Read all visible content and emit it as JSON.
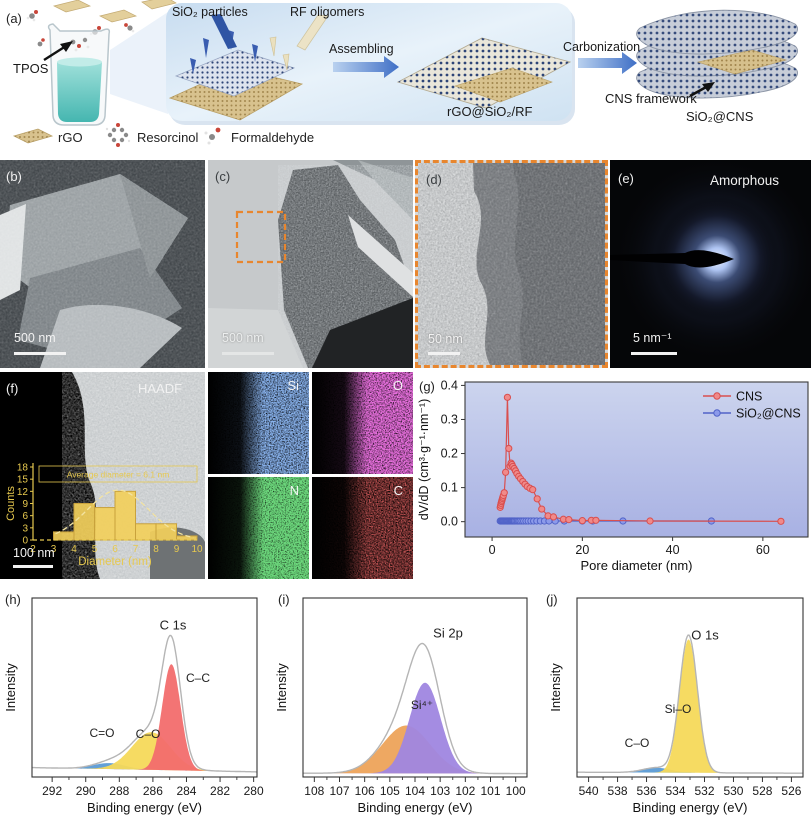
{
  "figure": {
    "panels": {
      "a": {
        "label": "(a)",
        "tpos": "TPOS",
        "sio2_particles": "SiO₂ particles",
        "rf_oligomers": "RF oligomers",
        "assembling": "Assembling",
        "intermediate": "rGO@SiO₂/RF",
        "carbonization": "Carbonization",
        "cns_framework": "CNS framework",
        "product": "SiO₂@CNS",
        "legend": [
          {
            "icon": "rgo-sheet-icon",
            "name": "rGO"
          },
          {
            "icon": "resorcinol-molecule-icon",
            "name": "Resorcinol"
          },
          {
            "icon": "formaldehyde-molecule-icon",
            "name": "Formaldehyde"
          }
        ]
      },
      "b": {
        "label": "(b)",
        "scale_bar": "500 nm"
      },
      "c": {
        "label": "(c)",
        "scale_bar": "500 nm"
      },
      "d": {
        "label": "(d)",
        "scale_bar": "50 nm"
      },
      "e": {
        "label": "(e)",
        "annotation": "Amorphous",
        "scale_bar": "5 nm⁻¹"
      },
      "f": {
        "label": "(f)",
        "technique": "HAADF",
        "scale_bar": "100 nm"
      },
      "eds": [
        {
          "element": "Si",
          "color": "#3d6fd0"
        },
        {
          "element": "O",
          "color": "#c428b2"
        },
        {
          "element": "N",
          "color": "#27a827"
        },
        {
          "element": "C",
          "color": "#9c1414"
        }
      ],
      "g": {
        "label": "(g)"
      },
      "h": {
        "label": "(h)"
      },
      "i": {
        "label": "(i)"
      },
      "j": {
        "label": "(j)"
      }
    }
  },
  "chart_data": [
    {
      "id": "pore-size-distribution",
      "type": "line",
      "panel": "g",
      "xlabel": "Pore diameter (nm)",
      "ylabel": "dV/dD (cm³·g⁻¹·nm⁻¹)",
      "xlim": [
        -6,
        70
      ],
      "ylim": [
        -0.045,
        0.41
      ],
      "xticks": [
        0,
        20,
        40,
        60
      ],
      "yticks": [
        0.0,
        0.1,
        0.2,
        0.3,
        0.4
      ],
      "grid": false,
      "legend_position": "top-right",
      "background": [
        "#ccd4ee",
        "#a8b1e3"
      ],
      "series": [
        {
          "name": "CNS",
          "color": "#d94f4f",
          "marker_fill": "#f08a8a",
          "x": [
            1.8,
            1.9,
            2.0,
            2.1,
            2.2,
            2.3,
            2.4,
            2.5,
            2.7,
            3.0,
            3.4,
            3.7,
            4.0,
            4.2,
            4.4,
            4.6,
            4.9,
            5.2,
            5.5,
            5.9,
            6.3,
            6.8,
            7.3,
            7.8,
            8.4,
            9.0,
            10.0,
            11.0,
            12.4,
            13.6,
            15.8,
            17.0,
            20.0,
            22.0,
            23.0,
            35.0,
            64.0
          ],
          "y": [
            0.042,
            0.048,
            0.054,
            0.059,
            0.063,
            0.068,
            0.072,
            0.077,
            0.085,
            0.145,
            0.365,
            0.215,
            0.163,
            0.172,
            0.168,
            0.162,
            0.156,
            0.149,
            0.141,
            0.133,
            0.126,
            0.118,
            0.11,
            0.103,
            0.098,
            0.094,
            0.067,
            0.037,
            0.017,
            0.014,
            0.007,
            0.006,
            0.003,
            0.004,
            0.004,
            0.002,
            0.001
          ]
        },
        {
          "name": "SiO₂@CNS",
          "color": "#5163c8",
          "marker_fill": "#8c9aea",
          "x": [
            1.8,
            2.0,
            2.2,
            2.4,
            2.6,
            2.8,
            3.0,
            3.2,
            3.4,
            3.6,
            3.8,
            4.0,
            4.2,
            4.4,
            4.6,
            4.8,
            5.0,
            5.3,
            5.6,
            5.9,
            6.2,
            6.6,
            7.0,
            7.5,
            8.0,
            8.6,
            9.2,
            9.9,
            10.7,
            11.6,
            12.6,
            14.0,
            16.0,
            20.0,
            22.3,
            29.0,
            48.6
          ],
          "y": [
            0.002,
            0.002,
            0.002,
            0.002,
            0.002,
            0.002,
            0.002,
            0.002,
            0.002,
            0.002,
            0.002,
            0.002,
            0.002,
            0.002,
            0.002,
            0.002,
            0.002,
            0.002,
            0.002,
            0.002,
            0.002,
            0.002,
            0.002,
            0.002,
            0.002,
            0.002,
            0.002,
            0.002,
            0.002,
            0.002,
            0.002,
            0.002,
            0.002,
            0.002,
            0.002,
            0.002,
            0.002
          ]
        }
      ]
    },
    {
      "id": "particle-size-histogram",
      "type": "bar",
      "panel": "f",
      "xlabel": "Diameter (nm)",
      "ylabel": "Counts",
      "annotation": "Average diameter = 6.1 nm",
      "xticks": [
        2,
        3,
        4,
        5,
        6,
        7,
        8,
        9,
        10
      ],
      "yticks": [
        0,
        3,
        6,
        9,
        12,
        15,
        18
      ],
      "bin_edges": [
        3,
        4,
        5,
        6,
        7,
        8,
        9,
        10
      ],
      "values": [
        2,
        9,
        8,
        12,
        4,
        4,
        1
      ],
      "bar_color": "#f2cf5b",
      "bar_edge_color": "#c9a23c",
      "axis_color": "#e7c94f",
      "fit_curve": {
        "center": 6.15,
        "sigma": 1.5,
        "amplitude": 12.3
      }
    },
    {
      "id": "xps-c1s",
      "type": "area",
      "panel": "h",
      "region_label": "C 1s",
      "xlabel": "Binding energy (eV)",
      "ylabel": "Intensity",
      "xlim": [
        293.2,
        279.8
      ],
      "xticks": [
        292,
        290,
        288,
        286,
        284,
        282,
        280
      ],
      "baseline": [
        0.055,
        0.03
      ],
      "envelope_scale": 1.05,
      "envelope_color": "#b5b5b5",
      "peaks": [
        {
          "label": "C–C",
          "center": 284.9,
          "sigma": 0.55,
          "amplitude": 0.62,
          "color": "#f26d6d"
        },
        {
          "label": "C–O",
          "center": 286.1,
          "sigma": 1.15,
          "amplitude": 0.22,
          "color": "#f5d95a"
        },
        {
          "label": "C=O",
          "center": 288.6,
          "sigma": 0.95,
          "amplitude": 0.035,
          "color": "#5b9bd5"
        }
      ]
    },
    {
      "id": "xps-si2p",
      "type": "area",
      "panel": "i",
      "region_label": "Si 2p",
      "xlabel": "Binding energy (eV)",
      "ylabel": "Intensity",
      "xlim": [
        108.45,
        99.55
      ],
      "xticks": [
        108,
        107,
        106,
        105,
        104,
        103,
        102,
        101,
        100
      ],
      "baseline": [
        0.022,
        0.02
      ],
      "envelope_scale": 1.02,
      "envelope_color": "#b5b5b5",
      "peaks": [
        {
          "label": "Si⁴⁺",
          "center": 103.6,
          "sigma": 0.62,
          "amplitude": 0.53,
          "color": "#9f86e0"
        },
        {
          "label": "",
          "center": 104.35,
          "sigma": 0.95,
          "amplitude": 0.28,
          "color": "#eda35a"
        }
      ]
    },
    {
      "id": "xps-o1s",
      "type": "area",
      "panel": "j",
      "region_label": "O 1s",
      "xlabel": "Binding energy (eV)",
      "ylabel": "Intensity",
      "xlim": [
        540.8,
        525.2
      ],
      "xticks": [
        540,
        538,
        536,
        534,
        532,
        530,
        528,
        526
      ],
      "baseline": [
        0.028,
        0.022
      ],
      "envelope_scale": 1.03,
      "envelope_color": "#b5b5b5",
      "peaks": [
        {
          "label": "Si–O",
          "center": 533.1,
          "sigma": 0.62,
          "amplitude": 0.78,
          "color": "#f5d95a"
        },
        {
          "label": "C–O",
          "center": 535.3,
          "sigma": 0.95,
          "amplitude": 0.028,
          "color": "#5b9bd5"
        }
      ]
    }
  ]
}
